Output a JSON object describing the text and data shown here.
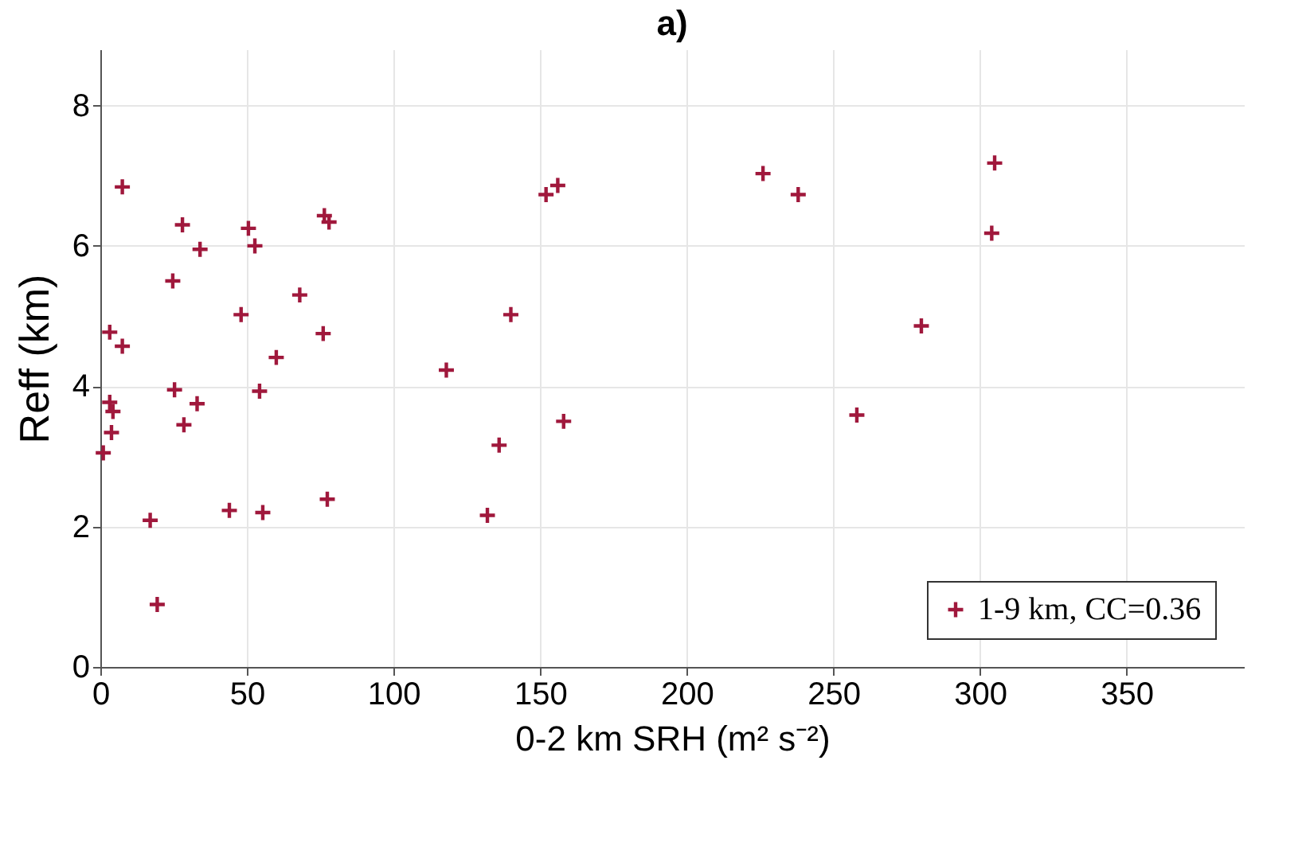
{
  "chart_data": {
    "type": "scatter",
    "title": "a)",
    "xlabel": "0-2 km SRH (m² s⁻²)",
    "ylabel": "Reff (km)",
    "xlim": [
      0,
      390
    ],
    "ylim": [
      0,
      8.8
    ],
    "xticks": [
      0,
      50,
      100,
      150,
      200,
      250,
      300,
      350
    ],
    "yticks": [
      0,
      2,
      4,
      6,
      8
    ],
    "grid": true,
    "legend": "bottom right",
    "marker": "cross",
    "series": [
      {
        "name": "1-9 km, CC=0.36",
        "color": "#a0183c",
        "x": [
          7.5,
          3.2,
          7.5,
          3.2,
          4.3,
          3.8,
          1,
          17,
          19.4,
          24.7,
          28,
          25.3,
          28.5,
          33,
          34,
          44,
          48,
          50.5,
          52.7,
          54.3,
          55.4,
          60,
          68,
          76,
          76.4,
          78,
          77.4,
          118,
          132,
          136,
          140,
          152,
          156,
          158,
          226,
          238,
          258,
          280,
          305,
          304
        ],
        "values": [
          6.84,
          4.77,
          4.57,
          3.77,
          3.64,
          3.34,
          3.05,
          2.09,
          0.89,
          5.5,
          6.3,
          3.95,
          3.45,
          3.75,
          5.95,
          2.23,
          5.02,
          6.25,
          6.0,
          3.93,
          2.2,
          4.41,
          5.3,
          4.75,
          6.43,
          6.34,
          2.39,
          4.23,
          2.16,
          3.16,
          5.02,
          6.73,
          6.86,
          3.5,
          7.03,
          6.73,
          3.59,
          4.86,
          7.18,
          6.18
        ]
      }
    ]
  }
}
